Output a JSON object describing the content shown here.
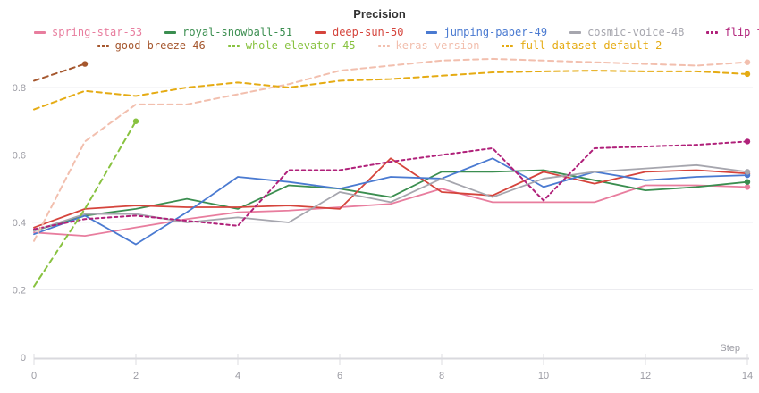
{
  "chart_data": {
    "type": "line",
    "title": "Precision",
    "xlabel": "Step",
    "ylabel": "",
    "xlim": [
      0,
      14
    ],
    "ylim": [
      0,
      0.9
    ],
    "x_ticks": [
      0,
      2,
      4,
      6,
      8,
      10,
      12,
      14
    ],
    "y_ticks": [
      0,
      0.2,
      0.4,
      0.6,
      0.8
    ],
    "grid": true,
    "legend_position": "top",
    "series": [
      {
        "name": "spring-star-53",
        "color": "#e87d9e",
        "dash": false,
        "legend_row": 1,
        "end_marker": true,
        "values": [
          0.37,
          0.36,
          0.385,
          0.41,
          0.43,
          0.435,
          0.445,
          0.455,
          0.5,
          0.46,
          0.46,
          0.46,
          0.51,
          0.51,
          0.505
        ]
      },
      {
        "name": "royal-snowball-51",
        "color": "#3b8e50",
        "dash": false,
        "legend_row": 1,
        "end_marker": true,
        "values": [
          0.375,
          0.42,
          0.44,
          0.47,
          0.44,
          0.51,
          0.5,
          0.475,
          0.55,
          0.55,
          0.555,
          0.525,
          0.495,
          0.505,
          0.52
        ]
      },
      {
        "name": "deep-sun-50",
        "color": "#d5443c",
        "dash": false,
        "legend_row": 1,
        "end_marker": true,
        "values": [
          0.385,
          0.44,
          0.45,
          0.445,
          0.445,
          0.45,
          0.44,
          0.59,
          0.49,
          0.48,
          0.55,
          0.515,
          0.55,
          0.555,
          0.545
        ]
      },
      {
        "name": "jumping-paper-49",
        "color": "#4a7ad1",
        "dash": false,
        "legend_row": 1,
        "end_marker": true,
        "values": [
          0.365,
          0.42,
          0.335,
          0.43,
          0.535,
          0.52,
          0.5,
          0.535,
          0.53,
          0.59,
          0.505,
          0.55,
          0.525,
          0.535,
          0.54
        ]
      },
      {
        "name": "cosmic-voice-48",
        "color": "#a6a6ae",
        "dash": false,
        "legend_row": 1,
        "end_marker": true,
        "values": [
          0.375,
          0.425,
          0.425,
          0.4,
          0.415,
          0.4,
          0.49,
          0.46,
          0.53,
          0.475,
          0.53,
          0.55,
          0.56,
          0.57,
          0.55
        ]
      },
      {
        "name": "flip train and valid sample",
        "color": "#b0217a",
        "dash": true,
        "legend_row": 1,
        "end_marker": true,
        "values": [
          0.38,
          0.41,
          0.42,
          0.405,
          0.39,
          0.555,
          0.555,
          0.58,
          0.6,
          0.62,
          0.465,
          0.62,
          0.625,
          0.63,
          0.64
        ]
      },
      {
        "name": "good-breeze-46",
        "color": "#a5572e",
        "dash": true,
        "legend_row": 2,
        "end_marker": true,
        "x": [
          0,
          1
        ],
        "values": [
          0.82,
          0.87
        ]
      },
      {
        "name": "whole-elevator-45",
        "color": "#88c240",
        "dash": true,
        "legend_row": 2,
        "end_marker": true,
        "x": [
          0,
          1,
          2
        ],
        "values": [
          0.21,
          0.44,
          0.7
        ]
      },
      {
        "name": "keras version",
        "color": "#f2bfae",
        "dash": true,
        "legend_row": 2,
        "end_marker": true,
        "values": [
          0.345,
          0.64,
          0.75,
          0.75,
          0.78,
          0.81,
          0.85,
          0.865,
          0.88,
          0.885,
          0.88,
          0.875,
          0.87,
          0.865,
          0.875
        ]
      },
      {
        "name": "full dataset default 2",
        "color": "#e5ab13",
        "dash": true,
        "legend_row": 2,
        "end_marker": true,
        "values": [
          0.735,
          0.79,
          0.775,
          0.8,
          0.815,
          0.8,
          0.82,
          0.825,
          0.835,
          0.845,
          0.848,
          0.85,
          0.848,
          0.848,
          0.84
        ]
      }
    ]
  }
}
